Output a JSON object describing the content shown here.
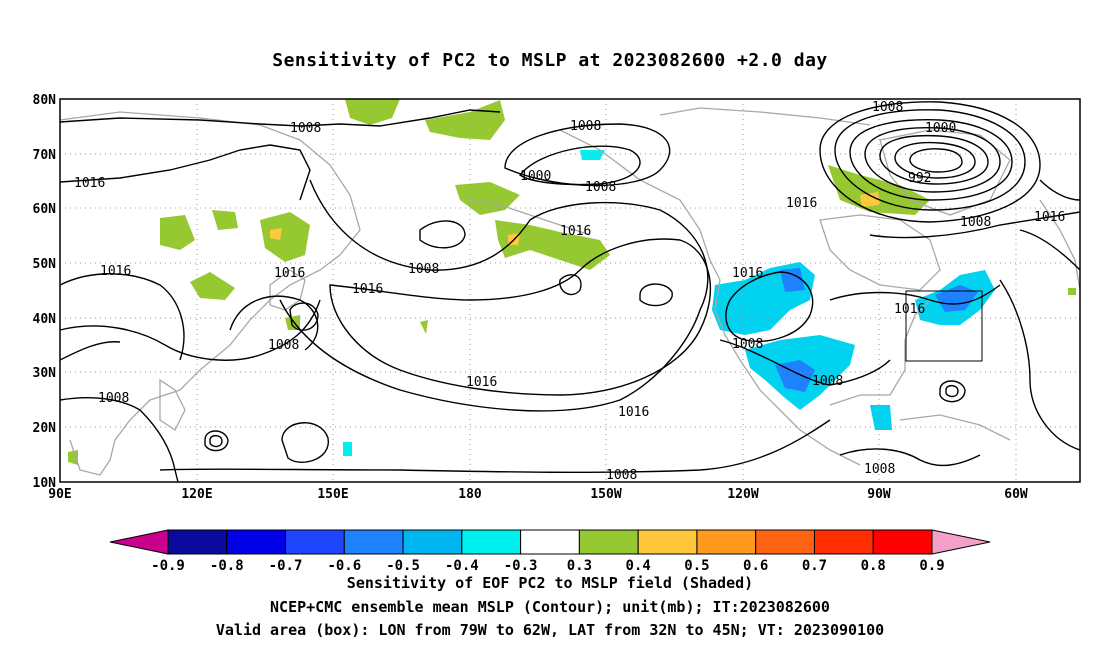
{
  "title": "Sensitivity of PC2 to MSLP at 2023082600 +2.0 day",
  "map": {
    "lat_labels": [
      "80N",
      "70N",
      "60N",
      "50N",
      "40N",
      "30N",
      "20N",
      "10N"
    ],
    "lon_labels": [
      "90E",
      "120E",
      "150E",
      "180",
      "150W",
      "120W",
      "90W",
      "60W"
    ],
    "grid": "dotted",
    "box": {
      "lon_from": "79W",
      "lon_to": "62W",
      "lat_from": "32N",
      "lat_to": "45N"
    },
    "contour_labels": [
      {
        "text": "1008"
      },
      {
        "text": "1008"
      },
      {
        "text": "1008"
      },
      {
        "text": "1000"
      },
      {
        "text": "992"
      },
      {
        "text": "1016"
      },
      {
        "text": "1000"
      },
      {
        "text": "1008"
      },
      {
        "text": "1016"
      },
      {
        "text": "1008"
      },
      {
        "text": "1016"
      },
      {
        "text": "1016"
      },
      {
        "text": "1016"
      },
      {
        "text": "1008"
      },
      {
        "text": "1016"
      },
      {
        "text": "1016"
      },
      {
        "text": "1016"
      },
      {
        "text": "1008"
      },
      {
        "text": "1008"
      },
      {
        "text": "1016"
      },
      {
        "text": "1016"
      },
      {
        "text": "1008"
      },
      {
        "text": "1008"
      },
      {
        "text": "1008"
      },
      {
        "text": "1008"
      }
    ]
  },
  "colorbar": {
    "labels": [
      "-0.9",
      "-0.8",
      "-0.7",
      "-0.6",
      "-0.5",
      "-0.4",
      "-0.3",
      "0.3",
      "0.4",
      "0.5",
      "0.6",
      "0.7",
      "0.8",
      "0.9"
    ],
    "colors": [
      "#c8008c",
      "#0a0a9c",
      "#0000e6",
      "#1e46ff",
      "#1e82ff",
      "#00b4f0",
      "#00f0f0",
      "#ffffff",
      "#96c832",
      "#ffc83c",
      "#ff9a1e",
      "#ff6414",
      "#ff2d00",
      "#ff0000",
      "#f5a0c8"
    ]
  },
  "captions": {
    "line1": "Sensitivity of EOF PC2 to MSLP field (Shaded)",
    "line2": "NCEP+CMC ensemble mean MSLP (Contour); unit(mb); IT:2023082600",
    "line3": "Valid area (box): LON from 79W to 62W, LAT from 32N to 45N; VT: 2023090100"
  }
}
